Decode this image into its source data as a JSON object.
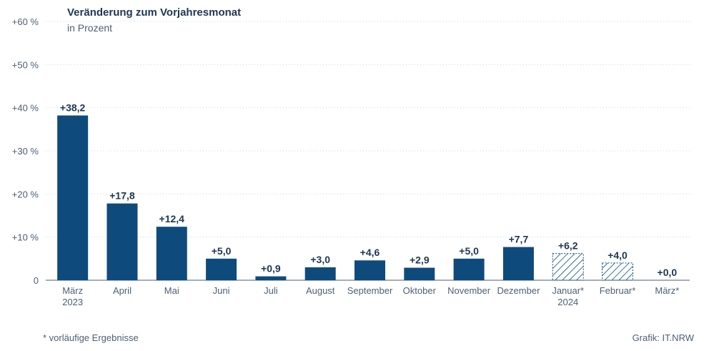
{
  "chart_data": {
    "type": "bar",
    "title": "Veränderung zum Vorjahresmonat",
    "subtitle": "in Prozent",
    "ylim": [
      0,
      60
    ],
    "yticks": [
      0,
      10,
      20,
      30,
      40,
      50,
      60
    ],
    "ytick_labels": [
      "0",
      "+10 %",
      "+20 %",
      "+30 %",
      "+40 %",
      "+50 %",
      "+60 %"
    ],
    "categories": [
      "März\n2023",
      "April",
      "Mai",
      "Juni",
      "Juli",
      "August",
      "September",
      "Oktober",
      "November",
      "Dezember",
      "Januar*\n2024",
      "Februar*",
      "März*"
    ],
    "values": [
      38.2,
      17.8,
      12.4,
      5.0,
      0.9,
      3.0,
      4.6,
      2.9,
      5.0,
      7.7,
      6.2,
      4.0,
      0.0
    ],
    "value_labels": [
      "+38,2",
      "+17,8",
      "+12,4",
      "+5,0",
      "+0,9",
      "+3,0",
      "+4,6",
      "+2,9",
      "+5,0",
      "+7,7",
      "+6,2",
      "+4,0",
      "+0,0"
    ],
    "provisional": [
      false,
      false,
      false,
      false,
      false,
      false,
      false,
      false,
      false,
      false,
      true,
      true,
      true
    ],
    "grid": true,
    "colors": {
      "bar": "#0f4a7d",
      "text": "#1f3652",
      "axis": "#4e5f72",
      "grid": "#cfd6df"
    }
  },
  "footer": {
    "note": "*  vorläufige Ergebnisse",
    "source": "Grafik: IT.NRW"
  }
}
